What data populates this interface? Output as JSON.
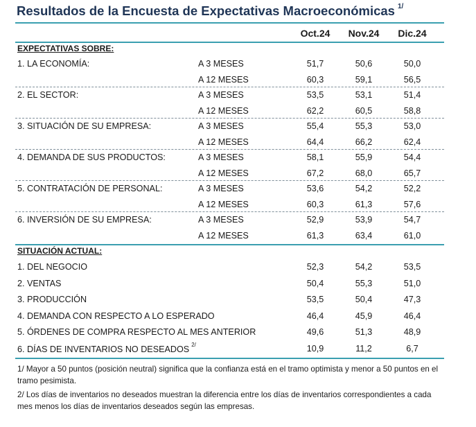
{
  "title": "Resultados de la Encuesta de Expectativas Macroeconómicas",
  "title_note": "1/",
  "columns": [
    "Oct.24",
    "Nov.24",
    "Dic.24"
  ],
  "section_expectativas": "EXPECTATIVAS SOBRE:",
  "expectativas": [
    {
      "label": "1. LA ECONOMÍA:",
      "rows": [
        {
          "horizon": "A 3 MESES",
          "values": [
            "51,7",
            "50,6",
            "50,0"
          ]
        },
        {
          "horizon": "A 12 MESES",
          "values": [
            "60,3",
            "59,1",
            "56,5"
          ]
        }
      ]
    },
    {
      "label": "2. EL SECTOR:",
      "rows": [
        {
          "horizon": "A 3 MESES",
          "values": [
            "53,5",
            "53,1",
            "51,4"
          ]
        },
        {
          "horizon": "A 12 MESES",
          "values": [
            "62,2",
            "60,5",
            "58,8"
          ]
        }
      ]
    },
    {
      "label": "3. SITUACIÓN DE SU EMPRESA:",
      "rows": [
        {
          "horizon": "A 3 MESES",
          "values": [
            "55,4",
            "55,3",
            "53,0"
          ]
        },
        {
          "horizon": "A 12 MESES",
          "values": [
            "64,4",
            "66,2",
            "62,4"
          ]
        }
      ]
    },
    {
      "label": "4. DEMANDA DE SUS PRODUCTOS:",
      "rows": [
        {
          "horizon": "A 3 MESES",
          "values": [
            "58,1",
            "55,9",
            "54,4"
          ]
        },
        {
          "horizon": "A 12 MESES",
          "values": [
            "67,2",
            "68,0",
            "65,7"
          ]
        }
      ]
    },
    {
      "label": "5. CONTRATACIÓN DE PERSONAL:",
      "rows": [
        {
          "horizon": "A 3 MESES",
          "values": [
            "53,6",
            "54,2",
            "52,2"
          ]
        },
        {
          "horizon": "A 12 MESES",
          "values": [
            "60,3",
            "61,3",
            "57,6"
          ]
        }
      ]
    },
    {
      "label": "6. INVERSIÓN DE SU EMPRESA:",
      "rows": [
        {
          "horizon": "A 3 MESES",
          "values": [
            "52,9",
            "53,9",
            "54,7"
          ]
        },
        {
          "horizon": "A 12 MESES",
          "values": [
            "61,3",
            "63,4",
            "61,0"
          ]
        }
      ]
    }
  ],
  "section_actual": "SITUACIÓN ACTUAL:",
  "actual": [
    {
      "label": "1. DEL NEGOCIO",
      "note": "",
      "values": [
        "52,3",
        "54,2",
        "53,5"
      ]
    },
    {
      "label": "2. VENTAS",
      "note": "",
      "values": [
        "50,4",
        "55,3",
        "51,0"
      ]
    },
    {
      "label": "3. PRODUCCIÓN",
      "note": "",
      "values": [
        "53,5",
        "50,4",
        "47,3"
      ]
    },
    {
      "label": "4. DEMANDA CON RESPECTO A LO ESPERADO",
      "note": "",
      "values": [
        "46,4",
        "45,9",
        "46,4"
      ]
    },
    {
      "label": "5. ÓRDENES DE COMPRA RESPECTO AL MES ANTERIOR",
      "note": "",
      "values": [
        "49,6",
        "51,3",
        "48,9"
      ]
    },
    {
      "label": "6. DÍAS DE INVENTARIOS NO DESEADOS",
      "note": "2/",
      "values": [
        "10,9",
        "11,2",
        "6,7"
      ]
    }
  ],
  "footnotes": [
    "1/ Mayor a 50 puntos (posición neutral) significa que la confianza está en el tramo optimista y menor a 50 puntos en el tramo pesimista.",
    "2/ Los días de inventarios no deseados muestran la diferencia entre los días de inventarios correspondientes a cada mes menos los días de inventarios deseados según las empresas."
  ]
}
